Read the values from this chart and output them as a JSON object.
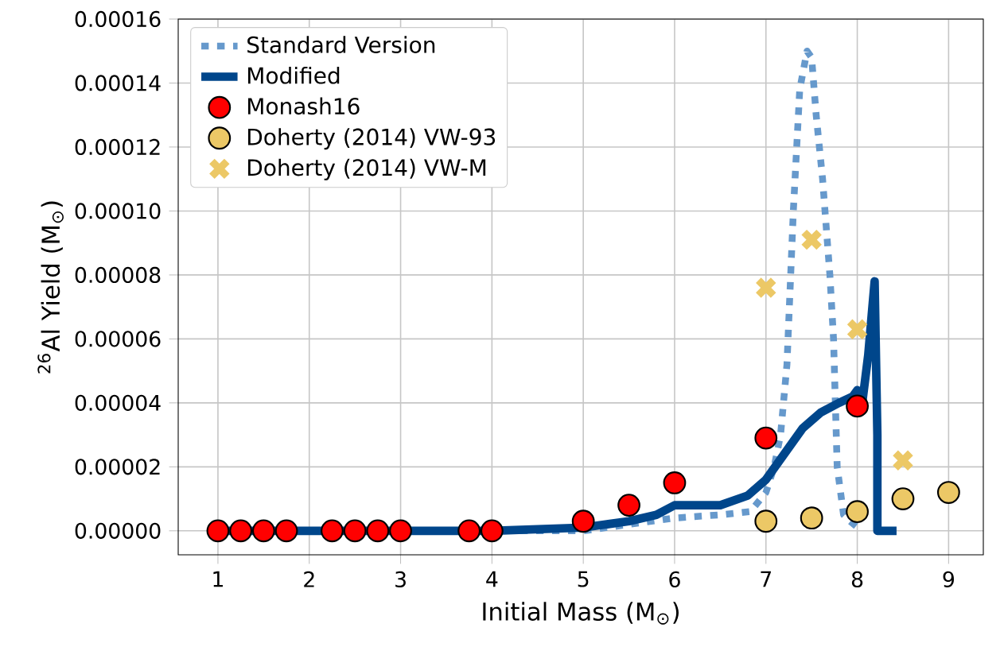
{
  "chart_data": {
    "type": "line",
    "xlabel": "Initial Mass (M$_{⊙}$)",
    "ylabel": "$^{26}$Al Yield (M$_{⊙}$)",
    "xlim": [
      0.565,
      9.38
    ],
    "xticks": [
      1,
      2,
      3,
      4,
      5,
      6,
      7,
      8,
      9
    ],
    "ylim": [
      -7.5e-06,
      0.00016
    ],
    "yticks": [
      {
        "value": 0,
        "label": "0.00000"
      },
      {
        "value": 2e-05,
        "label": "0.00002"
      },
      {
        "value": 4e-05,
        "label": "0.00004"
      },
      {
        "value": 6e-05,
        "label": "0.00006"
      },
      {
        "value": 8e-05,
        "label": "0.00008"
      },
      {
        "value": 0.0001,
        "label": "0.00010"
      },
      {
        "value": 0.00012,
        "label": "0.00012"
      },
      {
        "value": 0.00014,
        "label": "0.00014"
      },
      {
        "value": 0.00016,
        "label": "0.00016"
      }
    ],
    "grid": true,
    "legend": "top left",
    "series": [
      {
        "name": "Standard Version",
        "line_style": "dotted",
        "color": "#6699cc",
        "x": [
          1,
          4,
          5,
          6,
          6.5,
          6.83,
          7.0,
          7.09,
          7.16,
          7.23,
          7.3,
          7.37,
          7.45,
          7.5,
          7.55,
          7.62,
          7.7,
          7.74,
          7.76,
          7.78,
          7.85,
          7.92,
          8.05
        ],
        "values": [
          0,
          0,
          0,
          4e-06,
          5e-06,
          6e-06,
          1.2e-05,
          2e-05,
          3e-05,
          5.2e-05,
          0.0001,
          0.000138,
          0.00015,
          0.000148,
          0.00013,
          0.00011,
          8e-05,
          6e-05,
          4e-05,
          2e-05,
          5e-06,
          3e-06,
          0
        ]
      },
      {
        "name": "Modified",
        "line_style": "solid",
        "color": "#00468b",
        "x": [
          1,
          4,
          5,
          5.5,
          5.8,
          6.0,
          6.5,
          6.8,
          7.0,
          7.2,
          7.4,
          7.6,
          7.8,
          7.95,
          8.0,
          8.05,
          8.12,
          8.19,
          8.22,
          8.22,
          8.43
        ],
        "values": [
          0,
          0,
          1e-06,
          3e-06,
          5e-06,
          8e-06,
          8e-06,
          1.1e-05,
          1.6e-05,
          2.4e-05,
          3.2e-05,
          3.7e-05,
          4e-05,
          4.2e-05,
          4.4e-05,
          3.9e-05,
          5.5e-05,
          7.8e-05,
          3e-05,
          0,
          0
        ]
      },
      {
        "name": "Monash16",
        "type": "scatter",
        "marker": "circle",
        "color": "#ff0000",
        "x": [
          1,
          1.25,
          1.5,
          1.75,
          2.25,
          2.5,
          2.75,
          3,
          3.75,
          4,
          5,
          5.5,
          6,
          7,
          8
        ],
        "values": [
          0,
          0,
          0,
          0,
          0,
          0,
          0,
          0,
          0,
          0,
          3e-06,
          8e-06,
          1.5e-05,
          2.9e-05,
          3.9e-05
        ]
      },
      {
        "name": "Doherty (2014) VW-93",
        "type": "scatter",
        "marker": "circle",
        "color": "#ecc866",
        "x": [
          7,
          7.5,
          8,
          8.5,
          9
        ],
        "values": [
          3e-06,
          4e-06,
          6e-06,
          1e-05,
          1.2e-05
        ]
      },
      {
        "name": "Doherty (2014) VW-M",
        "type": "scatter",
        "marker": "cross",
        "color": "#ecc866",
        "x": [
          7,
          7.5,
          8,
          8.5
        ],
        "values": [
          7.6e-05,
          9.1e-05,
          6.3e-05,
          2.2e-05
        ]
      }
    ]
  }
}
